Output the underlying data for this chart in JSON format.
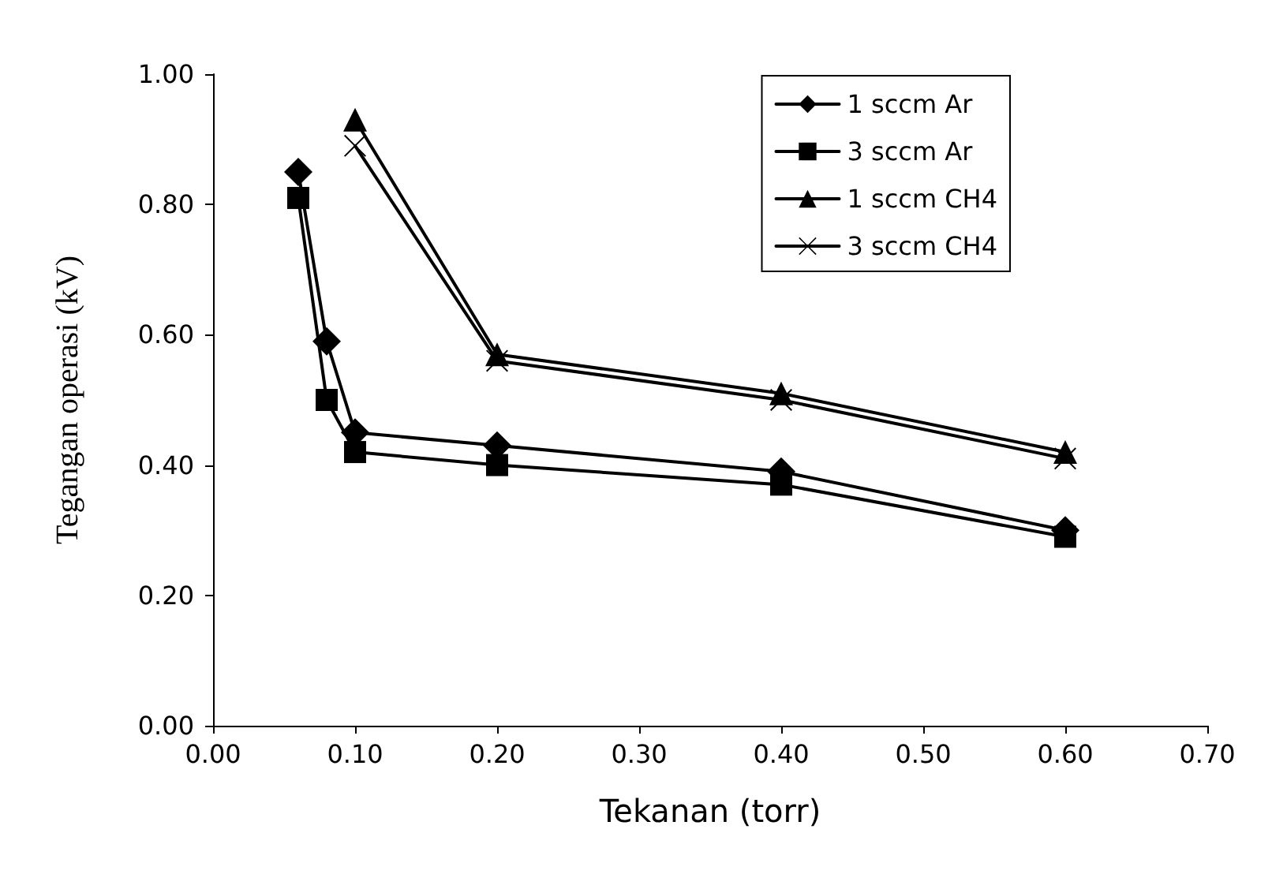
{
  "chart_data": {
    "type": "line",
    "xlabel": "Tekanan (torr)",
    "ylabel": "Tegangan operasi (kV)",
    "xlim": [
      0,
      0.7
    ],
    "xticks": [
      {
        "value": 0,
        "label": "0.00"
      },
      {
        "value": 0.1,
        "label": "0.10"
      },
      {
        "value": 0.2,
        "label": "0.20"
      },
      {
        "value": 0.3,
        "label": "0.30"
      },
      {
        "value": 0.4,
        "label": "0.40"
      },
      {
        "value": 0.5,
        "label": "0.50"
      },
      {
        "value": 0.6,
        "label": "0.60"
      },
      {
        "value": 0.7,
        "label": "0.70"
      }
    ],
    "ylim": [
      0,
      1
    ],
    "yticks": [
      {
        "value": 0,
        "label": "0.00"
      },
      {
        "value": 0.2,
        "label": "0.20"
      },
      {
        "value": 0.4,
        "label": "0.40"
      },
      {
        "value": 0.6,
        "label": "0.60"
      },
      {
        "value": 0.8,
        "label": "0.80"
      },
      {
        "value": 1,
        "label": "1.00"
      }
    ],
    "grid": false,
    "legend": "top right",
    "line_style": "solid",
    "series": [
      {
        "name": "1 sccm Ar",
        "color": "#000000",
        "marker": "diamond",
        "x": [
          0.06,
          0.08,
          0.1,
          0.2,
          0.4,
          0.6
        ],
        "values": [
          0.85,
          0.59,
          0.45,
          0.43,
          0.39,
          0.3
        ]
      },
      {
        "name": "3 sccm Ar",
        "color": "#000000",
        "marker": "square",
        "x": [
          0.06,
          0.08,
          0.1,
          0.2,
          0.4,
          0.6
        ],
        "values": [
          0.81,
          0.5,
          0.42,
          0.4,
          0.37,
          0.29
        ]
      },
      {
        "name": "1 sccm CH4",
        "color": "#000000",
        "marker": "triangle",
        "x": [
          0.1,
          0.2,
          0.4,
          0.6
        ],
        "values": [
          0.93,
          0.57,
          0.51,
          0.42
        ]
      },
      {
        "name": "3 sccm CH4",
        "color": "#000000",
        "marker": "cross",
        "x": [
          0.1,
          0.2,
          0.4,
          0.6
        ],
        "values": [
          0.89,
          0.56,
          0.5,
          0.41
        ]
      }
    ]
  }
}
